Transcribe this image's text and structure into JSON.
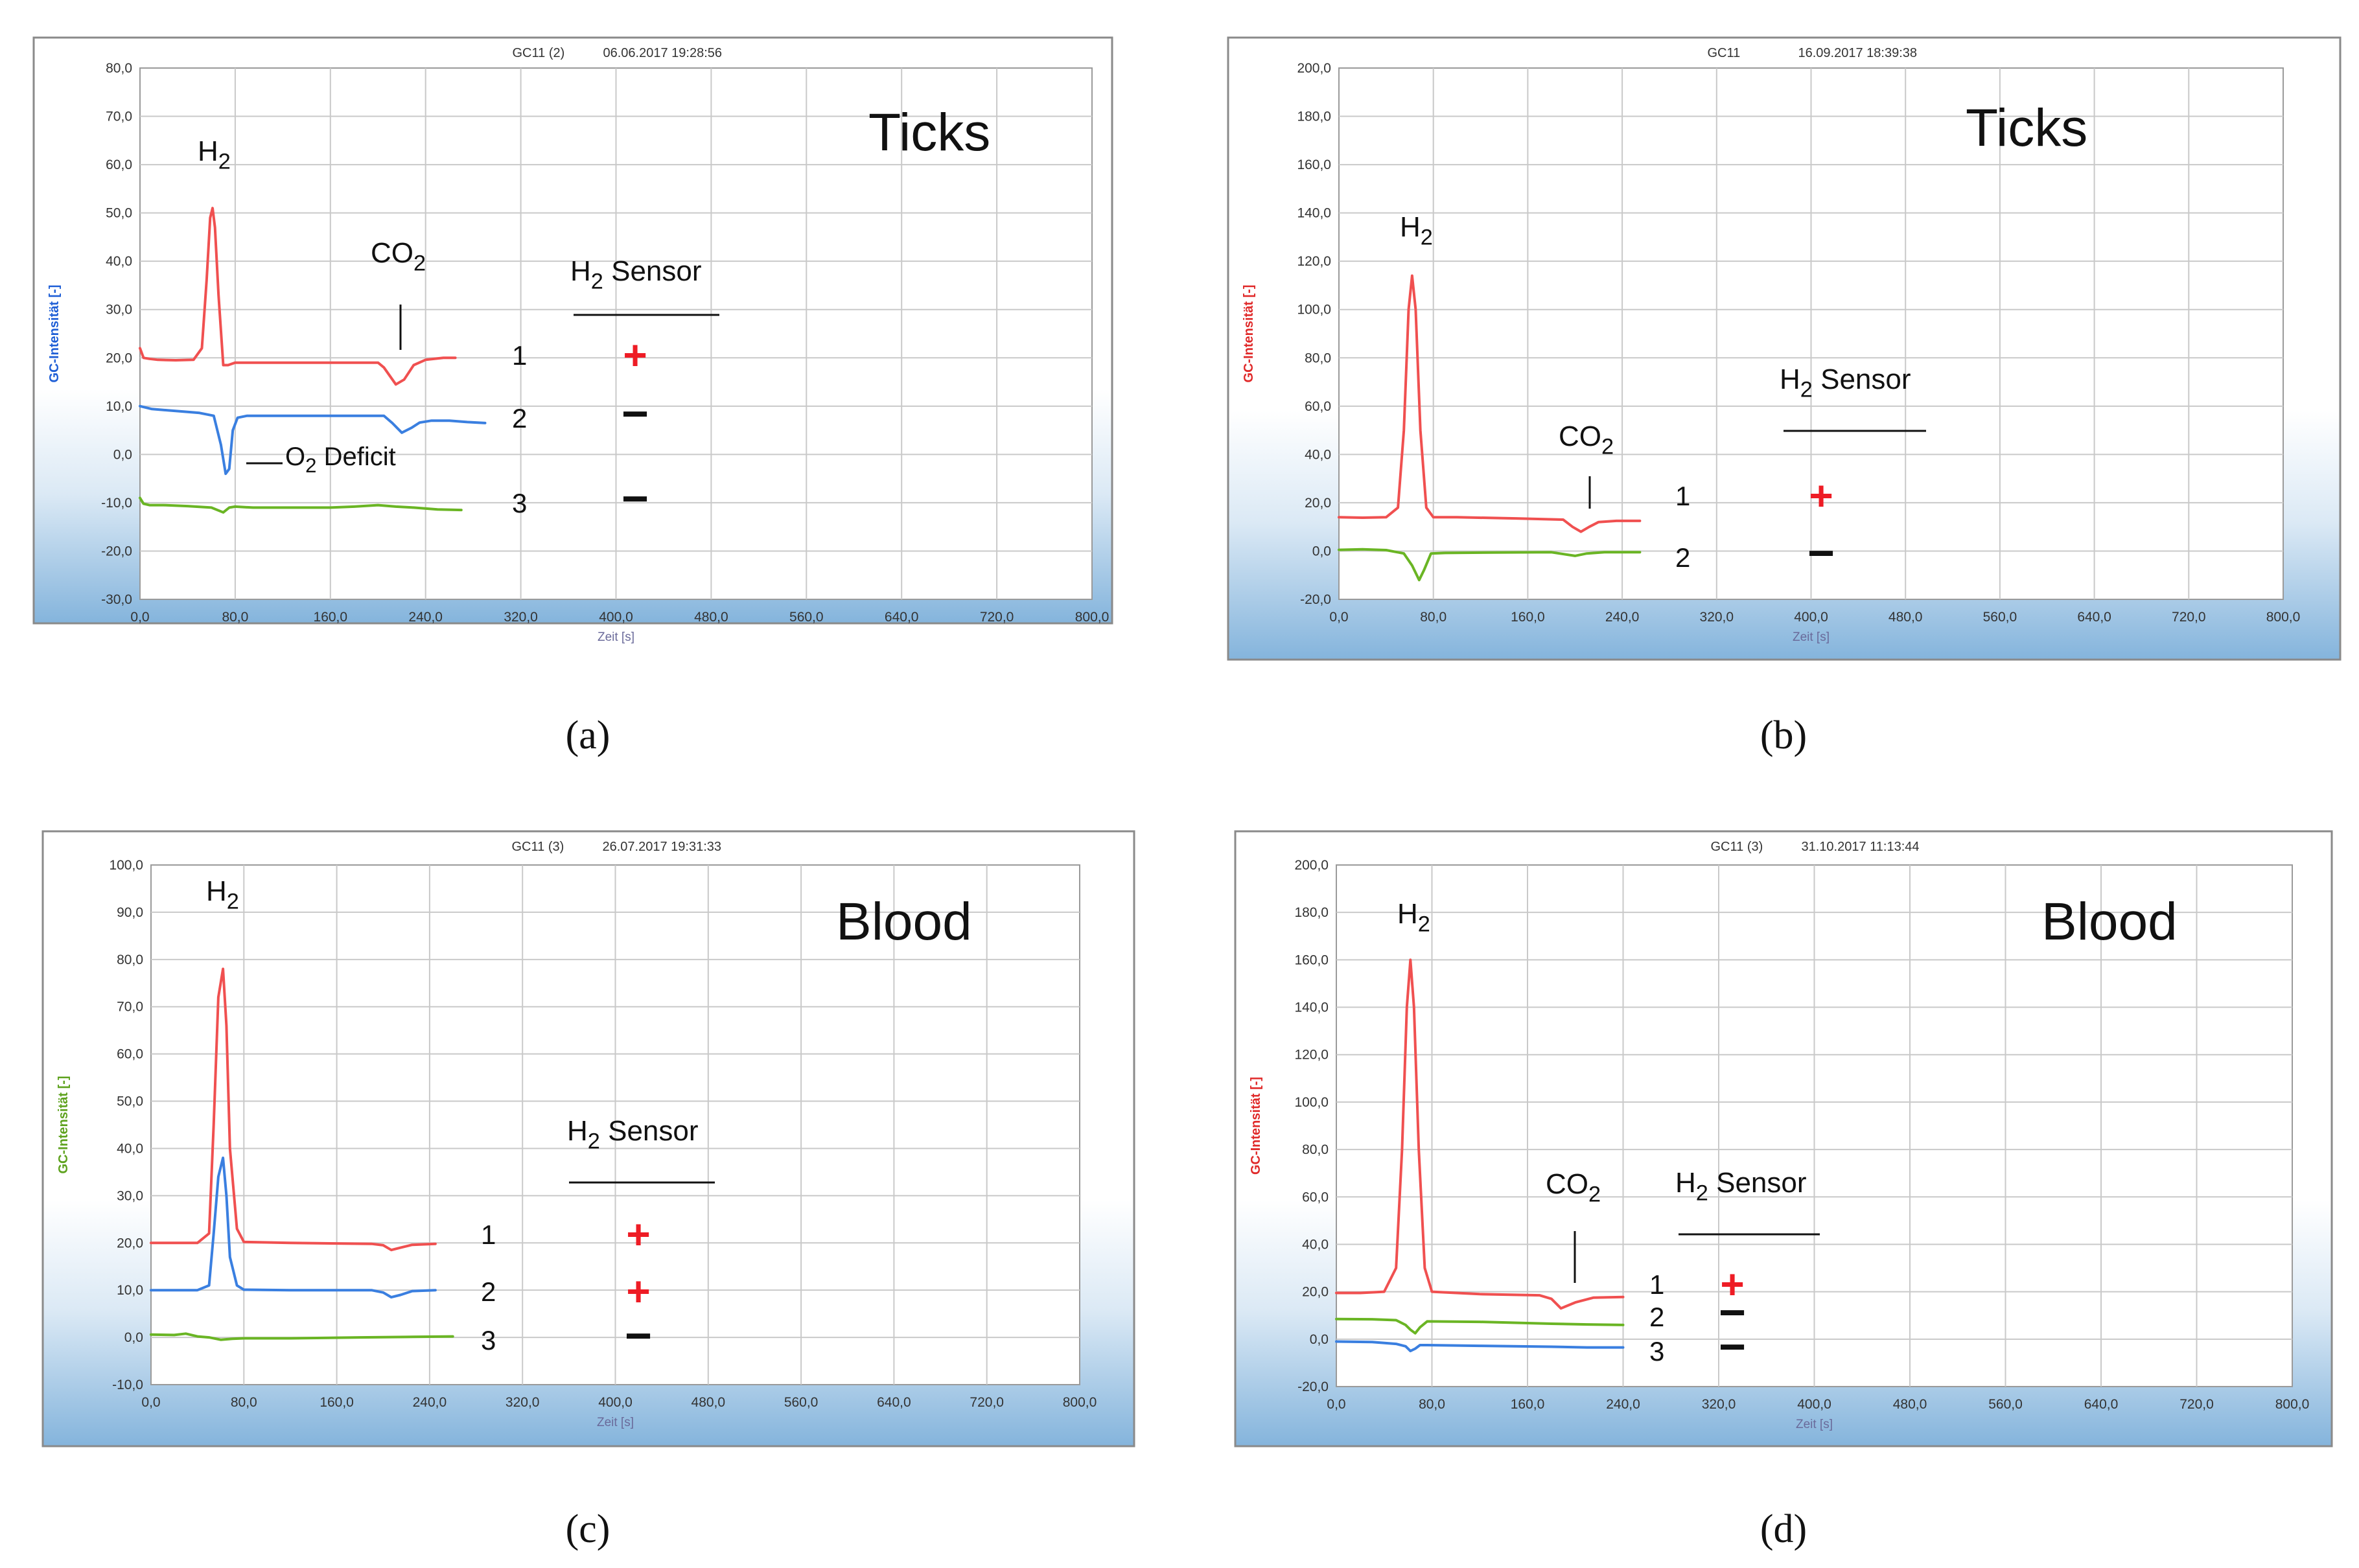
{
  "chart_data": [
    {
      "type": "line",
      "panel_label": "(a)",
      "header": "GC11 (2)",
      "timestamp": "06.06.2017 19:28:56",
      "big_label": "Ticks",
      "ylabel": "GC-Intensität [-]",
      "ylabel_color": "#1f5fd6",
      "xlabel": "Zeit [s]",
      "xlim": [
        0,
        800
      ],
      "ylim": [
        -30,
        80
      ],
      "x_ticks": [
        "0,0",
        "80,0",
        "160,0",
        "240,0",
        "320,0",
        "400,0",
        "480,0",
        "560,0",
        "640,0",
        "720,0",
        "800,0"
      ],
      "y_ticks": [
        "-30,0",
        "-20,0",
        "-10,0",
        "0,0",
        "10,0",
        "20,0",
        "30,0",
        "40,0",
        "50,0",
        "60,0",
        "70,0",
        "80,0"
      ],
      "series": [
        {
          "name": "1",
          "color": "#f05050",
          "x": [
            0,
            3,
            8,
            15,
            30,
            45,
            52,
            56,
            59,
            61,
            63,
            66,
            70,
            74,
            80,
            90,
            120,
            180,
            200,
            205,
            215,
            222,
            230,
            240,
            255,
            265
          ],
          "y": [
            22,
            20,
            19.8,
            19.6,
            19.5,
            19.6,
            22,
            36,
            49,
            51,
            47,
            33,
            18.5,
            18.5,
            19,
            19,
            19,
            19,
            19,
            18,
            14.5,
            15.5,
            18.5,
            19.6,
            20,
            20
          ]
        },
        {
          "name": "2",
          "color": "#3a7fe0",
          "x": [
            0,
            10,
            30,
            50,
            62,
            68,
            72,
            75,
            78,
            82,
            90,
            100,
            130,
            180,
            205,
            212,
            220,
            228,
            235,
            245,
            260,
            275,
            290
          ],
          "y": [
            10,
            9.4,
            9,
            8.6,
            8,
            2,
            -4,
            -3,
            5,
            7.6,
            8,
            8,
            8,
            8,
            8,
            6.5,
            4.5,
            5.5,
            6.6,
            7,
            7,
            6.7,
            6.5
          ]
        },
        {
          "name": "3",
          "color": "#6ab524",
          "x": [
            0,
            3,
            8,
            20,
            40,
            60,
            70,
            75,
            80,
            95,
            120,
            160,
            180,
            200,
            215,
            230,
            250,
            270
          ],
          "y": [
            -9,
            -10.2,
            -10.5,
            -10.5,
            -10.7,
            -11,
            -12,
            -11,
            -10.8,
            -11,
            -11,
            -11,
            -10.8,
            -10.5,
            -10.8,
            -11,
            -11.4,
            -11.5
          ]
        }
      ],
      "annotations": {
        "h2_base": "H",
        "h2_sub": "2",
        "co2_base": "CO",
        "co2_sub": "2",
        "o2_base": "O",
        "o2_sub": "2",
        "o2_rest": " Deficit",
        "sensor_base": "H",
        "sensor_sub": "2",
        "sensor_rest": " Sensor"
      },
      "sample_rows": [
        {
          "number": "1",
          "result": "+"
        },
        {
          "number": "2",
          "result": "−"
        },
        {
          "number": "3",
          "result": "−"
        }
      ]
    },
    {
      "type": "line",
      "panel_label": "(b)",
      "header": "GC11",
      "timestamp": "16.09.2017 18:39:38",
      "big_label": "Ticks",
      "ylabel": "GC-Intensität [-]",
      "ylabel_color": "#e02a2a",
      "xlabel": "Zeit [s]",
      "xlim": [
        0,
        800
      ],
      "ylim": [
        -20,
        200
      ],
      "x_ticks": [
        "0,0",
        "80,0",
        "160,0",
        "240,0",
        "320,0",
        "400,0",
        "480,0",
        "560,0",
        "640,0",
        "720,0",
        "800,0"
      ],
      "y_ticks": [
        "-20,0",
        "0,0",
        "20,0",
        "40,0",
        "60,0",
        "80,0",
        "100,0",
        "120,0",
        "140,0",
        "160,0",
        "180,0",
        "200,0"
      ],
      "series": [
        {
          "name": "1",
          "color": "#f05050",
          "x": [
            0,
            20,
            40,
            50,
            55,
            59,
            62,
            65,
            69,
            74,
            80,
            100,
            150,
            190,
            198,
            205,
            212,
            220,
            235,
            255
          ],
          "y": [
            14,
            13.8,
            14,
            18,
            50,
            100,
            114,
            100,
            50,
            18,
            14,
            14,
            13.5,
            13,
            10,
            8,
            10,
            12,
            12.5,
            12.5
          ]
        },
        {
          "name": "2",
          "color": "#6ab524",
          "x": [
            0,
            20,
            40,
            55,
            62,
            68,
            72,
            78,
            90,
            130,
            180,
            200,
            210,
            225,
            255
          ],
          "y": [
            0.5,
            0.7,
            0.4,
            -1,
            -6,
            -12,
            -8,
            -1,
            -0.8,
            -0.6,
            -0.5,
            -2,
            -1,
            -0.5,
            -0.5
          ]
        }
      ],
      "annotations": {
        "h2_base": "H",
        "h2_sub": "2",
        "co2_base": "CO",
        "co2_sub": "2",
        "sensor_base": "H",
        "sensor_sub": "2",
        "sensor_rest": " Sensor"
      },
      "sample_rows": [
        {
          "number": "1",
          "result": "+"
        },
        {
          "number": "2",
          "result": "−"
        }
      ]
    },
    {
      "type": "line",
      "panel_label": "(c)",
      "header": "GC11 (3)",
      "timestamp": "26.07.2017 19:31:33",
      "big_label": "Blood",
      "ylabel": "GC-Intensität [-]",
      "ylabel_color": "#5ea21e",
      "xlabel": "Zeit [s]",
      "xlim": [
        0,
        800
      ],
      "ylim": [
        -10,
        100
      ],
      "x_ticks": [
        "0,0",
        "80,0",
        "160,0",
        "240,0",
        "320,0",
        "400,0",
        "480,0",
        "560,0",
        "640,0",
        "720,0",
        "800,0"
      ],
      "y_ticks": [
        "-10,0",
        "0,0",
        "10,0",
        "20,0",
        "30,0",
        "40,0",
        "50,0",
        "60,0",
        "70,0",
        "80,0",
        "90,0",
        "100,0"
      ],
      "series": [
        {
          "name": "1",
          "color": "#f05050",
          "x": [
            0,
            20,
            40,
            50,
            54,
            58,
            62,
            65,
            68,
            74,
            80,
            120,
            190,
            200,
            207,
            215,
            225,
            245
          ],
          "y": [
            20,
            20,
            20,
            22,
            45,
            72,
            78,
            66,
            40,
            23,
            20.2,
            20,
            19.8,
            19.5,
            18.5,
            19,
            19.6,
            19.8
          ]
        },
        {
          "name": "2",
          "color": "#3a7fe0",
          "x": [
            0,
            20,
            40,
            50,
            54,
            58,
            62,
            65,
            68,
            74,
            80,
            120,
            190,
            200,
            207,
            215,
            225,
            245
          ],
          "y": [
            10,
            10,
            10,
            11,
            22,
            34,
            38,
            30,
            17,
            11,
            10.1,
            10,
            10,
            9.5,
            8.5,
            9,
            9.8,
            10
          ]
        },
        {
          "name": "3",
          "color": "#6ab524",
          "x": [
            0,
            20,
            30,
            40,
            50,
            60,
            70,
            80,
            120,
            180,
            220,
            260
          ],
          "y": [
            0.6,
            0.5,
            0.8,
            0.2,
            0,
            -0.5,
            -0.3,
            -0.2,
            -0.2,
            0,
            0.1,
            0.2
          ]
        }
      ],
      "annotations": {
        "h2_base": "H",
        "h2_sub": "2",
        "sensor_base": "H",
        "sensor_sub": "2",
        "sensor_rest": " Sensor"
      },
      "sample_rows": [
        {
          "number": "1",
          "result": "+"
        },
        {
          "number": "2",
          "result": "+"
        },
        {
          "number": "3",
          "result": "−"
        }
      ]
    },
    {
      "type": "line",
      "panel_label": "(d)",
      "header": "GC11 (3)",
      "timestamp": "31.10.2017 11:13:44",
      "big_label": "Blood",
      "ylabel": "GC-Intensität [-]",
      "ylabel_color": "#e02a2a",
      "xlabel": "Zeit [s]",
      "xlim": [
        0,
        800
      ],
      "ylim": [
        -20,
        200
      ],
      "x_ticks": [
        "0,0",
        "80,0",
        "160,0",
        "240,0",
        "320,0",
        "400,0",
        "480,0",
        "560,0",
        "640,0",
        "720,0",
        "800,0"
      ],
      "y_ticks": [
        "-20,0",
        "0,0",
        "20,0",
        "40,0",
        "60,0",
        "80,0",
        "100,0",
        "120,0",
        "140,0",
        "160,0",
        "180,0",
        "200,0"
      ],
      "series": [
        {
          "name": "1",
          "color": "#f05050",
          "x": [
            0,
            20,
            40,
            50,
            55,
            59,
            62,
            65,
            69,
            74,
            80,
            120,
            170,
            180,
            188,
            200,
            215,
            240
          ],
          "y": [
            19.5,
            19.5,
            20,
            30,
            80,
            140,
            160,
            140,
            80,
            30,
            20,
            19,
            18.5,
            17,
            13,
            15.5,
            17.5,
            17.8
          ]
        },
        {
          "name": "2",
          "color": "#6ab524",
          "x": [
            0,
            30,
            50,
            58,
            62,
            66,
            70,
            76,
            120,
            180,
            210,
            240
          ],
          "y": [
            8.5,
            8.4,
            8,
            6,
            4,
            2.5,
            5,
            7.5,
            7.3,
            6.5,
            6.2,
            6
          ]
        },
        {
          "name": "3",
          "color": "#3a7fe0",
          "x": [
            0,
            30,
            50,
            58,
            62,
            66,
            70,
            76,
            120,
            180,
            210,
            240
          ],
          "y": [
            -1,
            -1.2,
            -2,
            -3,
            -5,
            -4,
            -2.5,
            -2.5,
            -2.8,
            -3.2,
            -3.5,
            -3.5
          ]
        }
      ],
      "annotations": {
        "h2_base": "H",
        "h2_sub": "2",
        "co2_base": "CO",
        "co2_sub": "2",
        "sensor_base": "H",
        "sensor_sub": "2",
        "sensor_rest": " Sensor"
      },
      "sample_rows": [
        {
          "number": "1",
          "result": "+"
        },
        {
          "number": "2",
          "result": "−"
        },
        {
          "number": "3",
          "result": "−"
        }
      ]
    }
  ],
  "colors": {
    "plus": "#ee1c25",
    "minus": "#111111",
    "panel_border": "#8a8a8a",
    "grid": "#c9c9c9",
    "gradient_top": "#ffffff",
    "gradient_bottom": "#84b4dc"
  }
}
